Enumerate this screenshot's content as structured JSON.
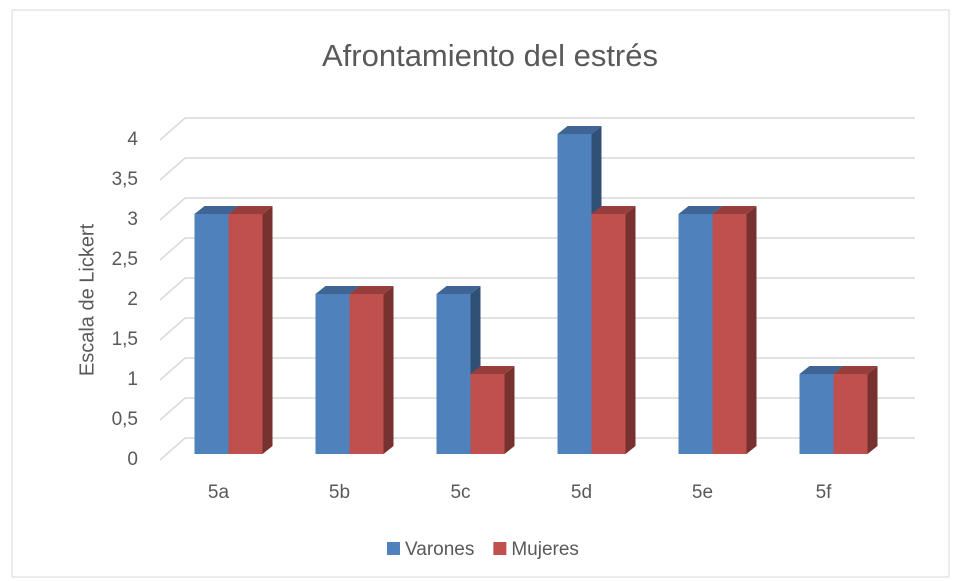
{
  "chart_data": {
    "type": "bar3d",
    "title": "Afrontamiento del estrés",
    "y_label": "Escala de Lickert",
    "categories": [
      "5a",
      "5b",
      "5c",
      "5d",
      "5e",
      "5f"
    ],
    "series": [
      {
        "name": "Varones",
        "color": "#4f81bd",
        "values": [
          3,
          2,
          2,
          4,
          3,
          1
        ]
      },
      {
        "name": "Mujeres",
        "color": "#c0504d",
        "values": [
          3,
          2,
          1,
          3,
          3,
          1
        ]
      }
    ],
    "ylim": [
      0,
      4
    ],
    "yticks": [
      0,
      {
        "value": 0.5,
        "label": "0,5"
      },
      1,
      {
        "value": 1.5,
        "label": "1,5"
      },
      2,
      {
        "value": 2.5,
        "label": "2,5"
      },
      3,
      {
        "value": 3.5,
        "label": "3,5"
      },
      4
    ],
    "grid": true,
    "legend": "bottom"
  }
}
